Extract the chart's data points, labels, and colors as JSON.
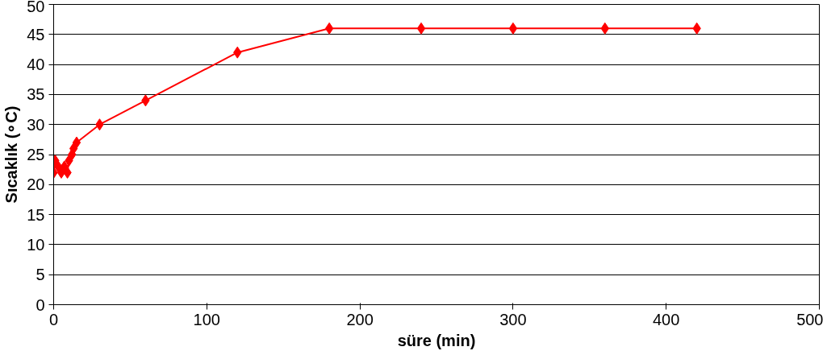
{
  "chart_data": {
    "type": "line",
    "xlabel": "süre (min)",
    "ylabel": "Sıcaklık (∘C)",
    "x": [
      0,
      1,
      3,
      5,
      7,
      9,
      10,
      12,
      13,
      15,
      30,
      60,
      120,
      180,
      240,
      300,
      360,
      420
    ],
    "series": [
      {
        "color": "#ff0000",
        "values": [
          22,
          24,
          23,
          22,
          23,
          22,
          24,
          25,
          26,
          27,
          30,
          34,
          42,
          46,
          46,
          46,
          46,
          46
        ]
      }
    ],
    "xlim": [
      0,
      500
    ],
    "xticks": [
      0,
      100,
      200,
      300,
      400,
      500
    ],
    "ylim": [
      0,
      50
    ],
    "yticks": [
      0,
      5,
      10,
      15,
      20,
      25,
      30,
      35,
      40,
      45,
      50
    ],
    "grid": "y",
    "marker": "diamond",
    "line_style": "solid"
  }
}
